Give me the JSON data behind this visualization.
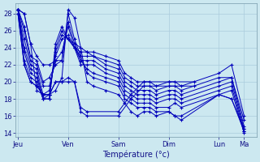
{
  "xlabel": "Température (°c)",
  "background_color": "#cce8f0",
  "line_color": "#0000bb",
  "grid_color": "#aaccdd",
  "ylim": [
    13.5,
    29.2
  ],
  "yticks": [
    14,
    16,
    18,
    20,
    22,
    24,
    26,
    28
  ],
  "day_labels": [
    "Jeu",
    "Ven",
    "Sam",
    "Dim",
    "Lun",
    "Ma"
  ],
  "day_positions": [
    0,
    1,
    2,
    3,
    4,
    4.5
  ],
  "xlim": [
    -0.05,
    4.75
  ],
  "series": [
    {
      "x": [
        0.0,
        0.125,
        0.25,
        0.375,
        0.5,
        0.625,
        0.75,
        0.875,
        1.0,
        1.125,
        1.25,
        1.375,
        1.5,
        1.75,
        2.0,
        2.125,
        2.25,
        2.375,
        2.5,
        2.625,
        2.75,
        3.0,
        3.125,
        3.25,
        4.0,
        4.25,
        4.5
      ],
      "y": [
        28.5,
        28.0,
        24.5,
        19.0,
        18.5,
        18.5,
        19.0,
        20.5,
        28.5,
        27.5,
        24.0,
        20.0,
        19.5,
        19.0,
        18.5,
        17.5,
        16.5,
        16.0,
        16.5,
        16.5,
        16.0,
        16.5,
        16.0,
        15.5,
        18.5,
        18.0,
        14.5
      ]
    },
    {
      "x": [
        0.0,
        0.125,
        0.25,
        0.375,
        0.5,
        0.625,
        0.75,
        0.875,
        1.0,
        1.125,
        1.25,
        1.375,
        1.5,
        1.75,
        2.0,
        2.125,
        2.25,
        2.375,
        2.5,
        2.625,
        2.75,
        3.0,
        3.125,
        3.25,
        4.0,
        4.25,
        4.5
      ],
      "y": [
        28.5,
        28.0,
        24.5,
        23.0,
        22.0,
        22.0,
        22.5,
        22.5,
        28.0,
        25.0,
        23.0,
        21.0,
        20.5,
        20.0,
        19.5,
        18.0,
        17.5,
        17.0,
        17.0,
        17.0,
        16.5,
        16.5,
        16.0,
        16.0,
        18.5,
        18.0,
        14.2
      ]
    },
    {
      "x": [
        0.0,
        0.125,
        0.25,
        0.375,
        0.5,
        0.625,
        0.75,
        0.875,
        1.0,
        1.125,
        1.25,
        1.375,
        1.5,
        1.75,
        2.0,
        2.125,
        2.25,
        2.375,
        2.5,
        2.625,
        2.75,
        3.0,
        3.125,
        3.25,
        4.0,
        4.25,
        4.5
      ],
      "y": [
        28.5,
        26.5,
        23.0,
        22.5,
        20.0,
        20.5,
        22.0,
        22.5,
        27.0,
        24.5,
        22.5,
        21.5,
        21.0,
        20.5,
        20.0,
        18.5,
        18.0,
        17.5,
        17.5,
        17.5,
        17.0,
        17.0,
        17.5,
        17.0,
        18.5,
        19.0,
        14.0
      ]
    },
    {
      "x": [
        0.0,
        0.125,
        0.25,
        0.375,
        0.5,
        0.625,
        0.75,
        0.875,
        1.0,
        1.125,
        1.25,
        1.375,
        1.5,
        1.75,
        2.0,
        2.125,
        2.25,
        2.375,
        2.5,
        2.625,
        2.75,
        3.0,
        3.125,
        3.25,
        4.0,
        4.25,
        4.5
      ],
      "y": [
        28.5,
        26.0,
        22.5,
        22.0,
        19.5,
        19.5,
        22.5,
        23.5,
        26.5,
        24.0,
        22.0,
        22.0,
        22.0,
        21.0,
        20.5,
        19.0,
        18.5,
        18.0,
        18.0,
        18.0,
        17.5,
        18.0,
        18.0,
        17.5,
        19.0,
        19.5,
        14.2
      ]
    },
    {
      "x": [
        0.0,
        0.125,
        0.25,
        0.375,
        0.5,
        0.625,
        0.75,
        0.875,
        1.0,
        1.125,
        1.25,
        1.375,
        1.5,
        1.75,
        2.0,
        2.125,
        2.25,
        2.375,
        2.5,
        2.625,
        2.75,
        3.0,
        3.125,
        3.25,
        4.0,
        4.25,
        4.5
      ],
      "y": [
        28.5,
        25.0,
        22.0,
        21.5,
        18.5,
        19.0,
        23.0,
        25.0,
        25.5,
        24.0,
        22.5,
        22.5,
        22.5,
        21.5,
        21.0,
        19.5,
        19.0,
        18.5,
        18.5,
        18.5,
        18.0,
        18.5,
        18.5,
        18.0,
        19.5,
        20.0,
        14.5
      ]
    },
    {
      "x": [
        0.0,
        0.125,
        0.25,
        0.375,
        0.5,
        0.625,
        0.75,
        0.875,
        1.0,
        1.125,
        1.25,
        1.375,
        1.5,
        1.75,
        2.0,
        2.125,
        2.25,
        2.375,
        2.5,
        2.625,
        2.75,
        3.0,
        3.125,
        3.25,
        4.0,
        4.25,
        4.5
      ],
      "y": [
        28.5,
        24.0,
        21.5,
        21.0,
        18.0,
        18.5,
        23.5,
        25.5,
        25.0,
        24.0,
        23.0,
        23.0,
        23.0,
        22.0,
        21.5,
        20.0,
        19.5,
        19.0,
        19.0,
        19.0,
        18.5,
        19.0,
        19.0,
        18.5,
        20.0,
        20.5,
        14.8
      ]
    },
    {
      "x": [
        0.0,
        0.125,
        0.25,
        0.375,
        0.5,
        0.625,
        0.75,
        0.875,
        1.0,
        1.125,
        1.25,
        1.375,
        1.5,
        1.75,
        2.0,
        2.125,
        2.25,
        2.375,
        2.5,
        2.625,
        2.75,
        3.0,
        3.125,
        3.25,
        4.0,
        4.25,
        4.5
      ],
      "y": [
        28.5,
        23.5,
        21.0,
        20.5,
        18.0,
        18.0,
        24.0,
        26.0,
        25.0,
        24.0,
        23.5,
        23.5,
        23.0,
        22.5,
        22.0,
        20.5,
        20.0,
        19.5,
        19.5,
        19.5,
        19.0,
        19.5,
        19.5,
        19.0,
        20.5,
        20.5,
        15.5
      ]
    },
    {
      "x": [
        0.0,
        0.125,
        0.25,
        0.375,
        0.5,
        0.625,
        0.75,
        0.875,
        1.0,
        1.125,
        1.25,
        1.375,
        1.5,
        1.75,
        2.0,
        2.125,
        2.25,
        2.375,
        2.5,
        2.625,
        2.75,
        3.0,
        3.125,
        3.25,
        4.0,
        4.25,
        4.5
      ],
      "y": [
        28.5,
        22.5,
        20.5,
        20.0,
        18.0,
        18.0,
        24.5,
        26.5,
        25.0,
        24.5,
        24.0,
        23.5,
        23.5,
        23.0,
        22.5,
        21.0,
        20.5,
        20.0,
        20.0,
        20.0,
        19.5,
        20.0,
        20.0,
        19.5,
        21.0,
        22.0,
        16.0
      ]
    },
    {
      "x": [
        0.0,
        0.125,
        0.25,
        0.375,
        0.5,
        0.625,
        0.75,
        0.875,
        1.0,
        1.125,
        1.25,
        1.375,
        2.0,
        2.25,
        2.5,
        3.0,
        3.5
      ],
      "y": [
        28.0,
        22.0,
        20.0,
        19.5,
        18.5,
        18.5,
        20.0,
        20.0,
        20.0,
        20.0,
        16.5,
        16.0,
        16.0,
        18.0,
        19.5,
        19.5,
        19.5
      ]
    },
    {
      "x": [
        0.0,
        0.125,
        0.25,
        0.375,
        0.5,
        0.625,
        0.75,
        0.875,
        1.0,
        1.125,
        1.25,
        1.375,
        2.0,
        2.25,
        2.5,
        3.0,
        3.5
      ],
      "y": [
        28.0,
        22.0,
        20.0,
        19.5,
        18.5,
        18.5,
        20.0,
        20.0,
        20.5,
        20.0,
        17.0,
        16.5,
        16.5,
        18.5,
        20.0,
        20.0,
        20.0
      ]
    }
  ]
}
